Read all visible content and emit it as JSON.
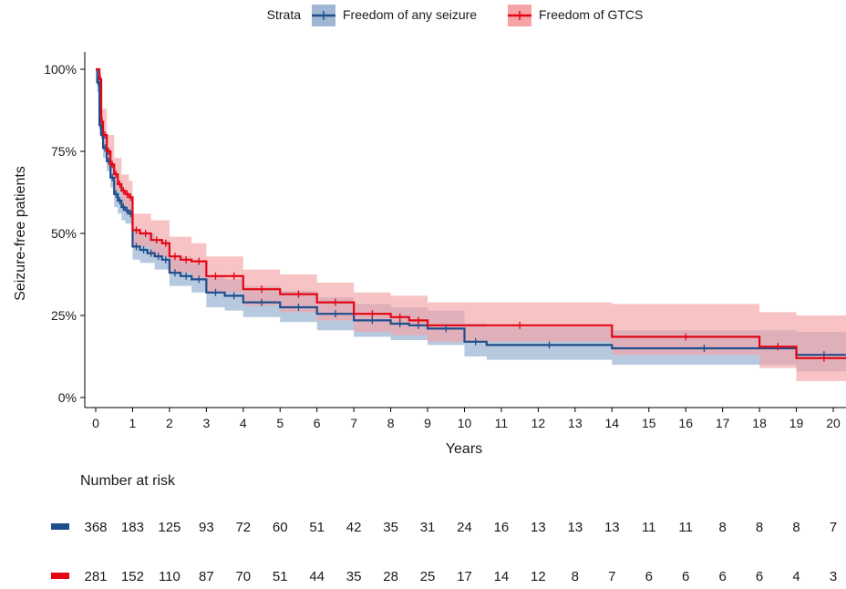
{
  "chart_data": {
    "type": "line",
    "step": true,
    "legend": {
      "title": "Strata",
      "position": "top",
      "entries": [
        "Freedom of any seizure",
        "Freedom of GTCS"
      ]
    },
    "xlabel": "Years",
    "ylabel": "Seizure-free patients",
    "xlim": [
      0,
      20
    ],
    "ylim": [
      0,
      1
    ],
    "x_ticks": [
      "0",
      "1",
      "2",
      "3",
      "4",
      "5",
      "6",
      "7",
      "8",
      "9",
      "10",
      "11",
      "12",
      "13",
      "14",
      "15",
      "16",
      "17",
      "18",
      "19",
      "20"
    ],
    "y_ticks": [
      "0%",
      "25%",
      "50%",
      "75%",
      "100%"
    ],
    "colors": {
      "any": "#1f4e8c",
      "gtcs": "#e30613",
      "any_band": "#9fb7d3",
      "gtcs_band": "#f4a3a6"
    },
    "series": [
      {
        "name": "Freedom of any seizure",
        "color": "#1f4e8c",
        "steps": [
          [
            0,
            1.0
          ],
          [
            0.04,
            0.96
          ],
          [
            0.1,
            0.83
          ],
          [
            0.15,
            0.8
          ],
          [
            0.2,
            0.76
          ],
          [
            0.3,
            0.72
          ],
          [
            0.4,
            0.67
          ],
          [
            0.5,
            0.62
          ],
          [
            0.6,
            0.6
          ],
          [
            0.7,
            0.58
          ],
          [
            0.8,
            0.57
          ],
          [
            0.9,
            0.56
          ],
          [
            1.0,
            0.46
          ],
          [
            1.2,
            0.45
          ],
          [
            1.4,
            0.44
          ],
          [
            1.6,
            0.43
          ],
          [
            1.8,
            0.42
          ],
          [
            2.0,
            0.38
          ],
          [
            2.3,
            0.37
          ],
          [
            2.6,
            0.36
          ],
          [
            3.0,
            0.32
          ],
          [
            3.5,
            0.31
          ],
          [
            4.0,
            0.29
          ],
          [
            5.0,
            0.275
          ],
          [
            6.0,
            0.255
          ],
          [
            7.0,
            0.235
          ],
          [
            8.0,
            0.225
          ],
          [
            8.5,
            0.22
          ],
          [
            9.0,
            0.21
          ],
          [
            10.0,
            0.17
          ],
          [
            10.6,
            0.16
          ],
          [
            14.0,
            0.15
          ],
          [
            19.0,
            0.13
          ],
          [
            20.5,
            0.13
          ]
        ],
        "lower": [
          [
            0,
            1.0
          ],
          [
            0.04,
            0.93
          ],
          [
            0.1,
            0.8
          ],
          [
            0.2,
            0.73
          ],
          [
            0.3,
            0.69
          ],
          [
            0.4,
            0.64
          ],
          [
            0.5,
            0.58
          ],
          [
            0.6,
            0.56
          ],
          [
            0.7,
            0.54
          ],
          [
            0.8,
            0.53
          ],
          [
            1.0,
            0.42
          ],
          [
            1.2,
            0.41
          ],
          [
            1.6,
            0.39
          ],
          [
            2.0,
            0.34
          ],
          [
            2.6,
            0.32
          ],
          [
            3.0,
            0.275
          ],
          [
            3.5,
            0.265
          ],
          [
            4.0,
            0.245
          ],
          [
            5.0,
            0.23
          ],
          [
            6.0,
            0.205
          ],
          [
            7.0,
            0.185
          ],
          [
            8.0,
            0.175
          ],
          [
            9.0,
            0.16
          ],
          [
            10.0,
            0.125
          ],
          [
            10.6,
            0.115
          ],
          [
            14.0,
            0.1
          ],
          [
            19.0,
            0.08
          ],
          [
            20.5,
            0.08
          ]
        ],
        "upper": [
          [
            0,
            1.0
          ],
          [
            0.04,
            0.98
          ],
          [
            0.1,
            0.86
          ],
          [
            0.2,
            0.8
          ],
          [
            0.3,
            0.76
          ],
          [
            0.4,
            0.71
          ],
          [
            0.5,
            0.66
          ],
          [
            0.6,
            0.64
          ],
          [
            0.7,
            0.62
          ],
          [
            0.8,
            0.61
          ],
          [
            1.0,
            0.51
          ],
          [
            1.2,
            0.5
          ],
          [
            1.6,
            0.48
          ],
          [
            2.0,
            0.43
          ],
          [
            2.6,
            0.41
          ],
          [
            3.0,
            0.37
          ],
          [
            3.5,
            0.36
          ],
          [
            4.0,
            0.34
          ],
          [
            5.0,
            0.325
          ],
          [
            6.0,
            0.305
          ],
          [
            7.0,
            0.285
          ],
          [
            8.0,
            0.275
          ],
          [
            9.0,
            0.265
          ],
          [
            10.0,
            0.225
          ],
          [
            10.6,
            0.215
          ],
          [
            14.0,
            0.205
          ],
          [
            19.0,
            0.2
          ],
          [
            20.5,
            0.2
          ]
        ]
      },
      {
        "name": "Freedom of GTCS",
        "color": "#e30613",
        "steps": [
          [
            0,
            1.0
          ],
          [
            0.1,
            0.97
          ],
          [
            0.15,
            0.84
          ],
          [
            0.2,
            0.8
          ],
          [
            0.3,
            0.75
          ],
          [
            0.4,
            0.71
          ],
          [
            0.5,
            0.68
          ],
          [
            0.6,
            0.65
          ],
          [
            0.7,
            0.63
          ],
          [
            0.8,
            0.62
          ],
          [
            0.9,
            0.61
          ],
          [
            1.0,
            0.51
          ],
          [
            1.2,
            0.5
          ],
          [
            1.5,
            0.48
          ],
          [
            1.8,
            0.47
          ],
          [
            2.0,
            0.43
          ],
          [
            2.3,
            0.42
          ],
          [
            2.6,
            0.415
          ],
          [
            3.0,
            0.37
          ],
          [
            3.5,
            0.37
          ],
          [
            4.0,
            0.33
          ],
          [
            5.0,
            0.315
          ],
          [
            6.0,
            0.29
          ],
          [
            7.0,
            0.255
          ],
          [
            8.0,
            0.245
          ],
          [
            8.5,
            0.235
          ],
          [
            9.0,
            0.22
          ],
          [
            14.0,
            0.185
          ],
          [
            18.0,
            0.155
          ],
          [
            19.0,
            0.12
          ],
          [
            20.5,
            0.12
          ]
        ],
        "lower": [
          [
            0,
            1.0
          ],
          [
            0.1,
            0.95
          ],
          [
            0.15,
            0.8
          ],
          [
            0.3,
            0.7
          ],
          [
            0.5,
            0.63
          ],
          [
            0.7,
            0.58
          ],
          [
            0.9,
            0.56
          ],
          [
            1.0,
            0.46
          ],
          [
            1.5,
            0.43
          ],
          [
            2.0,
            0.38
          ],
          [
            2.6,
            0.365
          ],
          [
            3.0,
            0.32
          ],
          [
            4.0,
            0.28
          ],
          [
            5.0,
            0.26
          ],
          [
            6.0,
            0.235
          ],
          [
            7.0,
            0.2
          ],
          [
            8.0,
            0.19
          ],
          [
            9.0,
            0.17
          ],
          [
            14.0,
            0.13
          ],
          [
            18.0,
            0.09
          ],
          [
            19.0,
            0.05
          ],
          [
            20.5,
            0.05
          ]
        ],
        "upper": [
          [
            0,
            1.0
          ],
          [
            0.1,
            0.99
          ],
          [
            0.15,
            0.88
          ],
          [
            0.3,
            0.8
          ],
          [
            0.5,
            0.73
          ],
          [
            0.7,
            0.68
          ],
          [
            0.9,
            0.66
          ],
          [
            1.0,
            0.56
          ],
          [
            1.5,
            0.54
          ],
          [
            2.0,
            0.49
          ],
          [
            2.6,
            0.47
          ],
          [
            3.0,
            0.43
          ],
          [
            4.0,
            0.39
          ],
          [
            5.0,
            0.375
          ],
          [
            6.0,
            0.35
          ],
          [
            7.0,
            0.32
          ],
          [
            8.0,
            0.31
          ],
          [
            9.0,
            0.29
          ],
          [
            14.0,
            0.285
          ],
          [
            18.0,
            0.26
          ],
          [
            19.0,
            0.25
          ],
          [
            20.5,
            0.25
          ]
        ]
      }
    ],
    "risk_table": {
      "title": "Number at risk",
      "times": [
        0,
        1,
        2,
        3,
        4,
        5,
        6,
        7,
        8,
        9,
        10,
        11,
        12,
        13,
        14,
        15,
        16,
        17,
        18,
        19,
        20
      ],
      "rows": [
        {
          "series": "Freedom of any seizure",
          "color": "#1f4e8c",
          "values": [
            368,
            183,
            125,
            93,
            72,
            60,
            51,
            42,
            35,
            31,
            24,
            16,
            13,
            13,
            13,
            11,
            11,
            8,
            8,
            8,
            7
          ]
        },
        {
          "series": "Freedom of GTCS",
          "color": "#e30613",
          "values": [
            281,
            152,
            110,
            87,
            70,
            51,
            44,
            35,
            28,
            25,
            17,
            14,
            12,
            8,
            7,
            6,
            6,
            6,
            6,
            4,
            3
          ]
        }
      ]
    }
  }
}
